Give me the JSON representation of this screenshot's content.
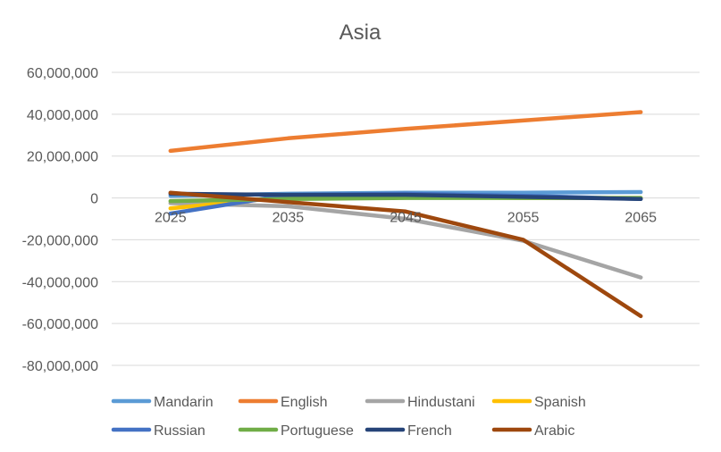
{
  "chart_data": {
    "type": "line",
    "title": "Asia",
    "x": [
      "2025",
      "2035",
      "2045",
      "2055",
      "2065"
    ],
    "ylim": [
      -80000000,
      60000000
    ],
    "yticks": [
      60000000,
      40000000,
      20000000,
      0,
      -20000000,
      -40000000,
      -60000000,
      -80000000
    ],
    "ytick_labels": [
      "60,000,000",
      "40,000,000",
      "20,000,000",
      "0",
      "-20,000,000",
      "-40,000,000",
      "-60,000,000",
      "-80,000,000"
    ],
    "grid": true,
    "legend_position": "bottom",
    "series": [
      {
        "name": "Mandarin",
        "color": "#5B9BD5",
        "values": [
          1000000,
          2000000,
          2500000,
          2500000,
          2800000
        ]
      },
      {
        "name": "English",
        "color": "#ED7D31",
        "values": [
          22500000,
          28500000,
          33000000,
          37000000,
          41000000
        ]
      },
      {
        "name": "Hindustani",
        "color": "#A5A5A5",
        "values": [
          -2500000,
          -4000000,
          -10000000,
          -20500000,
          -38000000
        ]
      },
      {
        "name": "Spanish",
        "color": "#FFC000",
        "values": [
          -5000000,
          500000,
          500000,
          0,
          0
        ]
      },
      {
        "name": "Russian",
        "color": "#4472C4",
        "values": [
          -7500000,
          1500000,
          2000000,
          1000000,
          -500000
        ]
      },
      {
        "name": "Portuguese",
        "color": "#70AD47",
        "values": [
          -1500000,
          -500000,
          0,
          0,
          0
        ]
      },
      {
        "name": "French",
        "color": "#264478",
        "values": [
          2000000,
          1500000,
          1500000,
          500000,
          -500000
        ]
      },
      {
        "name": "Arabic",
        "color": "#9E480E",
        "values": [
          2500000,
          -2000000,
          -6500000,
          -20000000,
          -56500000
        ]
      }
    ]
  }
}
